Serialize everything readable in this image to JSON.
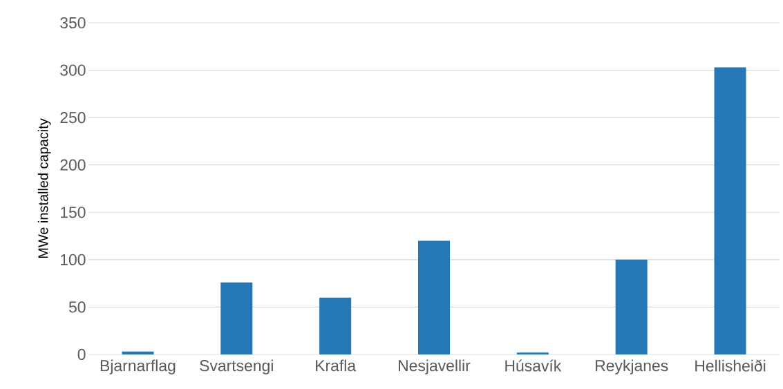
{
  "chart_data": {
    "type": "bar",
    "ylabel": "MWe installed capacity",
    "categories": [
      "Bjarnarflag",
      "Svartsengi",
      "Krafla",
      "Nesjavellir",
      "Húsavík",
      "Reykjanes",
      "Hellisheiði"
    ],
    "values": [
      3,
      76,
      60,
      120,
      2,
      100,
      303
    ],
    "color": "#2378b5",
    "ylim": [
      0,
      350
    ],
    "yticks": [
      0,
      50,
      100,
      150,
      200,
      250,
      300,
      350
    ],
    "grid": "y"
  }
}
